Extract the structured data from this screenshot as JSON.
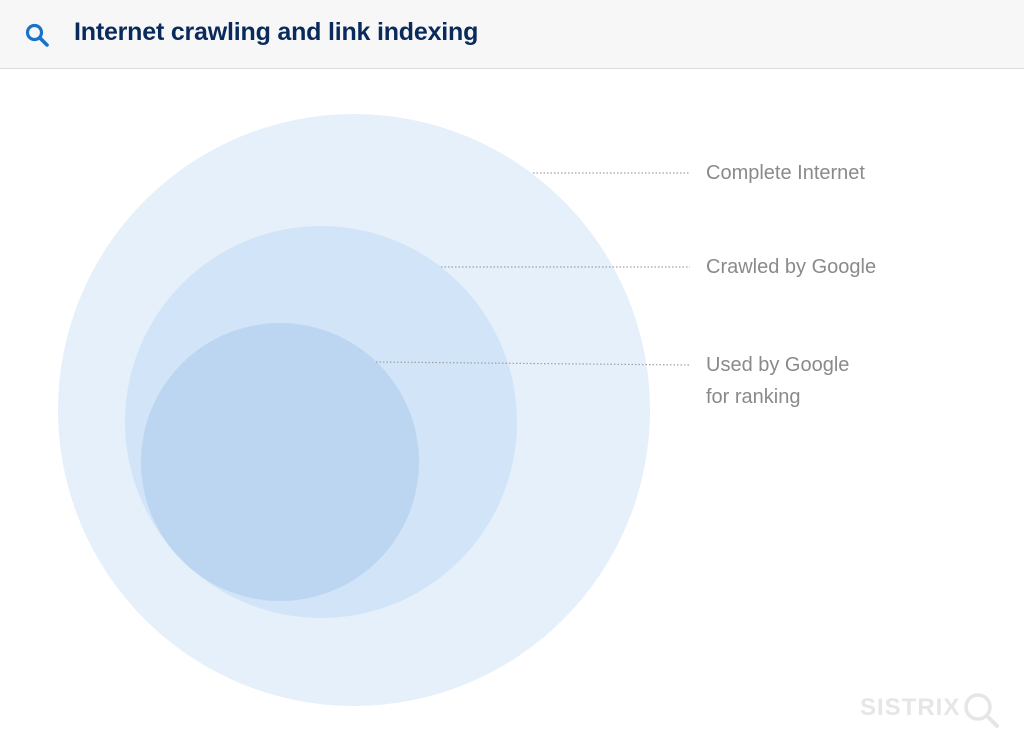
{
  "header": {
    "title": "Internet crawling and link indexing",
    "icon": "search-icon",
    "title_color": "#0a2a5c",
    "icon_color": "#1a73c8"
  },
  "diagram": {
    "circles": [
      {
        "name": "complete-internet",
        "label_lines": [
          "Complete Internet"
        ],
        "color": "#e5f0fb"
      },
      {
        "name": "crawled-by-google",
        "label_lines": [
          "Crawled by Google"
        ],
        "color": "#d2e4f7"
      },
      {
        "name": "used-for-ranking",
        "label_lines": [
          "Used by Google",
          "for ranking"
        ],
        "color": "#bcd6f2"
      }
    ]
  },
  "watermark": {
    "text": "SISTRIX",
    "icon": "magnifier-icon"
  }
}
